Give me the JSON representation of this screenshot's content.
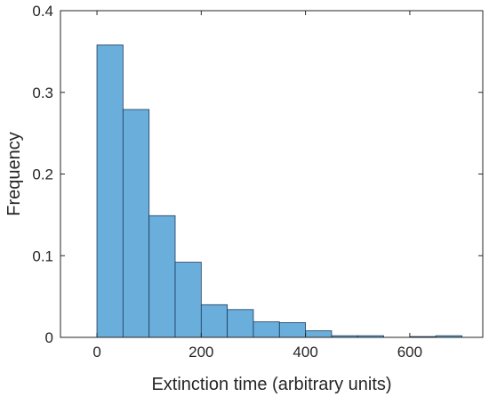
{
  "chart_data": {
    "type": "bar",
    "subtype": "histogram",
    "bin_edges": [
      0,
      50,
      100,
      150,
      200,
      250,
      300,
      350,
      400,
      450,
      500,
      550,
      600,
      650,
      700
    ],
    "values": [
      0.358,
      0.279,
      0.149,
      0.092,
      0.04,
      0.034,
      0.019,
      0.018,
      0.008,
      0.002,
      0.002,
      0.0,
      0.001,
      0.002
    ],
    "xlabel": "Extinction time (arbitrary units)",
    "ylabel": "Frequency",
    "xlim": [
      -70,
      740
    ],
    "ylim": [
      0,
      0.4
    ],
    "xticks": [
      0,
      200,
      400,
      600
    ],
    "yticks": [
      0,
      0.1,
      0.2,
      0.3,
      0.4
    ],
    "xtick_labels": [
      "0",
      "200",
      "400",
      "600"
    ],
    "ytick_labels": [
      "0",
      "0.1",
      "0.2",
      "0.3",
      "0.4"
    ],
    "grid": false,
    "legend": false,
    "bar_color": "#6aaedc",
    "edge_color": "#1b3a5c"
  }
}
